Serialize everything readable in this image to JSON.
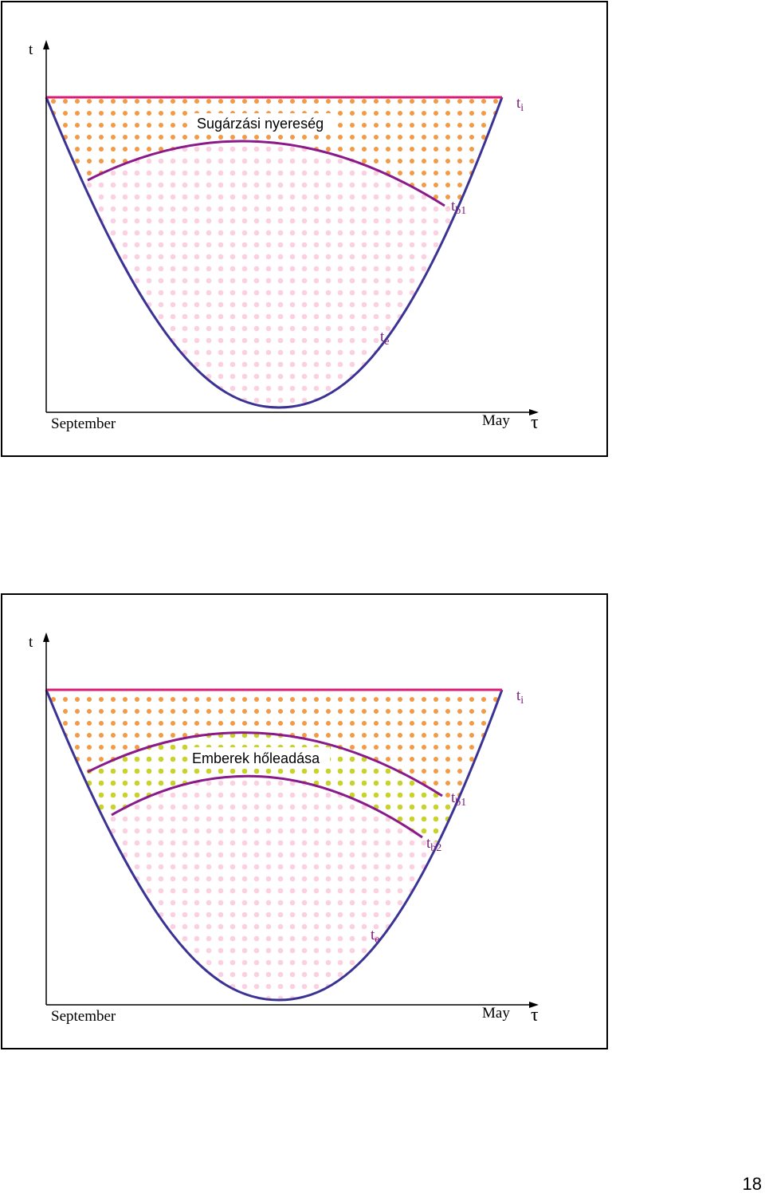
{
  "panels": [
    {
      "y_axis": "t",
      "x_axis": "τ",
      "x_start": "September",
      "x_end": "May",
      "ti": {
        "base": "t",
        "sub": "i"
      },
      "tb1": {
        "base": "t",
        "sub": "b1"
      },
      "te": {
        "base": "t",
        "sub": "e"
      },
      "annotation": "Sugárzási nyereség"
    },
    {
      "y_axis": "t",
      "x_axis": "τ",
      "x_start": "September",
      "x_end": "May",
      "ti": {
        "base": "t",
        "sub": "i"
      },
      "tb1": {
        "base": "t",
        "sub": "b1"
      },
      "tb2": {
        "base": "t",
        "sub": "b2"
      },
      "te": {
        "base": "t",
        "sub": "e"
      },
      "annotation": "Emberek hőleadása"
    }
  ],
  "page_number": "18"
}
